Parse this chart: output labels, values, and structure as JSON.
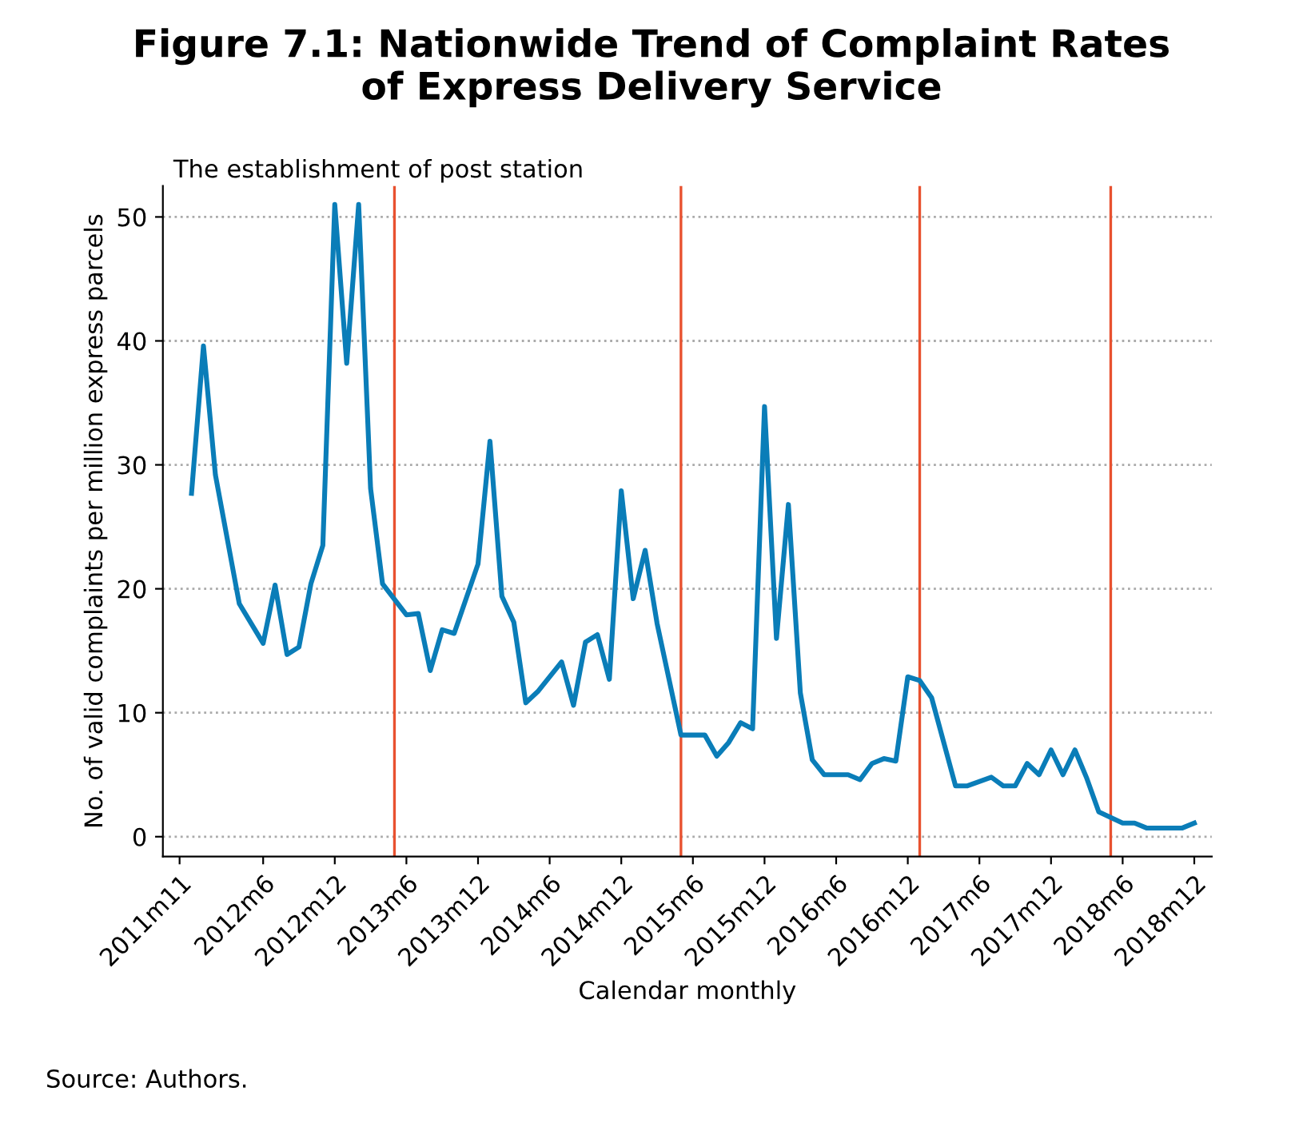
{
  "chart_data": {
    "type": "line",
    "title": "Figure 7.1: Nationwide Trend of Complaint Rates\nof Express Delivery Service",
    "xlabel": "Calendar monthly",
    "ylabel": "No. of valid complaints per million express parcels",
    "x": [
      "2011-12",
      "2012-01",
      "2012-02",
      "2012-04",
      "2012-06",
      "2012-07",
      "2012-08",
      "2012-09",
      "2012-10",
      "2012-11",
      "2012-12",
      "2013-01",
      "2013-02",
      "2013-03",
      "2013-04",
      "2013-06",
      "2013-07",
      "2013-08",
      "2013-09",
      "2013-10",
      "2013-12",
      "2014-01",
      "2014-02",
      "2014-03",
      "2014-04",
      "2014-05",
      "2014-07",
      "2014-08",
      "2014-09",
      "2014-10",
      "2014-11",
      "2014-12",
      "2015-01",
      "2015-02",
      "2015-03",
      "2015-05",
      "2015-07",
      "2015-08",
      "2015-09",
      "2015-10",
      "2015-11",
      "2015-12",
      "2016-01",
      "2016-02",
      "2016-03",
      "2016-04",
      "2016-05",
      "2016-07",
      "2016-08",
      "2016-09",
      "2016-10",
      "2016-11",
      "2016-12",
      "2017-01",
      "2017-02",
      "2017-04",
      "2017-05",
      "2017-07",
      "2017-08",
      "2017-09",
      "2017-10",
      "2017-11",
      "2017-12",
      "2018-01",
      "2018-02",
      "2018-03",
      "2018-04",
      "2018-06",
      "2018-07",
      "2018-08",
      "2018-11",
      "2018-12"
    ],
    "series": [
      {
        "color": "#0a7db8",
        "values": [
          27.7,
          39.6,
          29.2,
          18.8,
          15.6,
          20.3,
          14.7,
          15.3,
          20.4,
          23.5,
          51,
          38.2,
          51,
          28.1,
          20.4,
          17.9,
          18.0,
          13.4,
          16.7,
          16.4,
          22.0,
          31.9,
          19.4,
          17.3,
          10.8,
          11.7,
          14.1,
          10.6,
          15.7,
          16.3,
          12.7,
          27.9,
          19.2,
          23.1,
          17.2,
          8.2,
          8.2,
          6.5,
          7.6,
          9.2,
          8.7,
          34.7,
          16.0,
          26.8,
          11.6,
          6.2,
          5.0,
          5.0,
          4.6,
          5.9,
          6.3,
          6.1,
          12.9,
          12.6,
          11.2,
          4.1,
          4.1,
          4.8,
          4.1,
          4.1,
          5.9,
          5.0,
          7.0,
          5.0,
          7.0,
          4.7,
          2.0,
          1.1,
          1.1,
          0.7,
          0.7,
          1.1
        ]
      }
    ],
    "xlim": [
      "2011-09-19",
      "2019-01-15"
    ],
    "xticks": [
      {
        "value": "2011-11",
        "label": "2011m11"
      },
      {
        "value": "2012-06",
        "label": "2012m6"
      },
      {
        "value": "2012-12",
        "label": "2012m12"
      },
      {
        "value": "2013-06",
        "label": "2013m6"
      },
      {
        "value": "2013-12",
        "label": "2013m12"
      },
      {
        "value": "2014-06",
        "label": "2014m6"
      },
      {
        "value": "2014-12",
        "label": "2014m12"
      },
      {
        "value": "2015-06",
        "label": "2015m6"
      },
      {
        "value": "2015-12",
        "label": "2015m12"
      },
      {
        "value": "2016-06",
        "label": "2016m6"
      },
      {
        "value": "2016-12",
        "label": "2016m12"
      },
      {
        "value": "2017-06",
        "label": "2017m6"
      },
      {
        "value": "2017-12",
        "label": "2017m12"
      },
      {
        "value": "2018-06",
        "label": "2018m6"
      },
      {
        "value": "2018-12",
        "label": "2018m12"
      }
    ],
    "ylim": [
      -1.6,
      52.5
    ],
    "yticks": [
      0,
      10,
      20,
      30,
      40,
      50
    ],
    "grid": "y",
    "marker": "none",
    "line_style": "solid",
    "ref_lines": [
      {
        "axis": "x",
        "value": "2013-05",
        "color": "#e8512f"
      },
      {
        "axis": "x",
        "value": "2015-05",
        "color": "#e8512f"
      },
      {
        "axis": "x",
        "value": "2017-01",
        "color": "#e8512f"
      },
      {
        "axis": "x",
        "value": "2018-05",
        "color": "#e8512f"
      }
    ],
    "annotations": [
      "The establishment of post station",
      "Source: Authors."
    ]
  }
}
